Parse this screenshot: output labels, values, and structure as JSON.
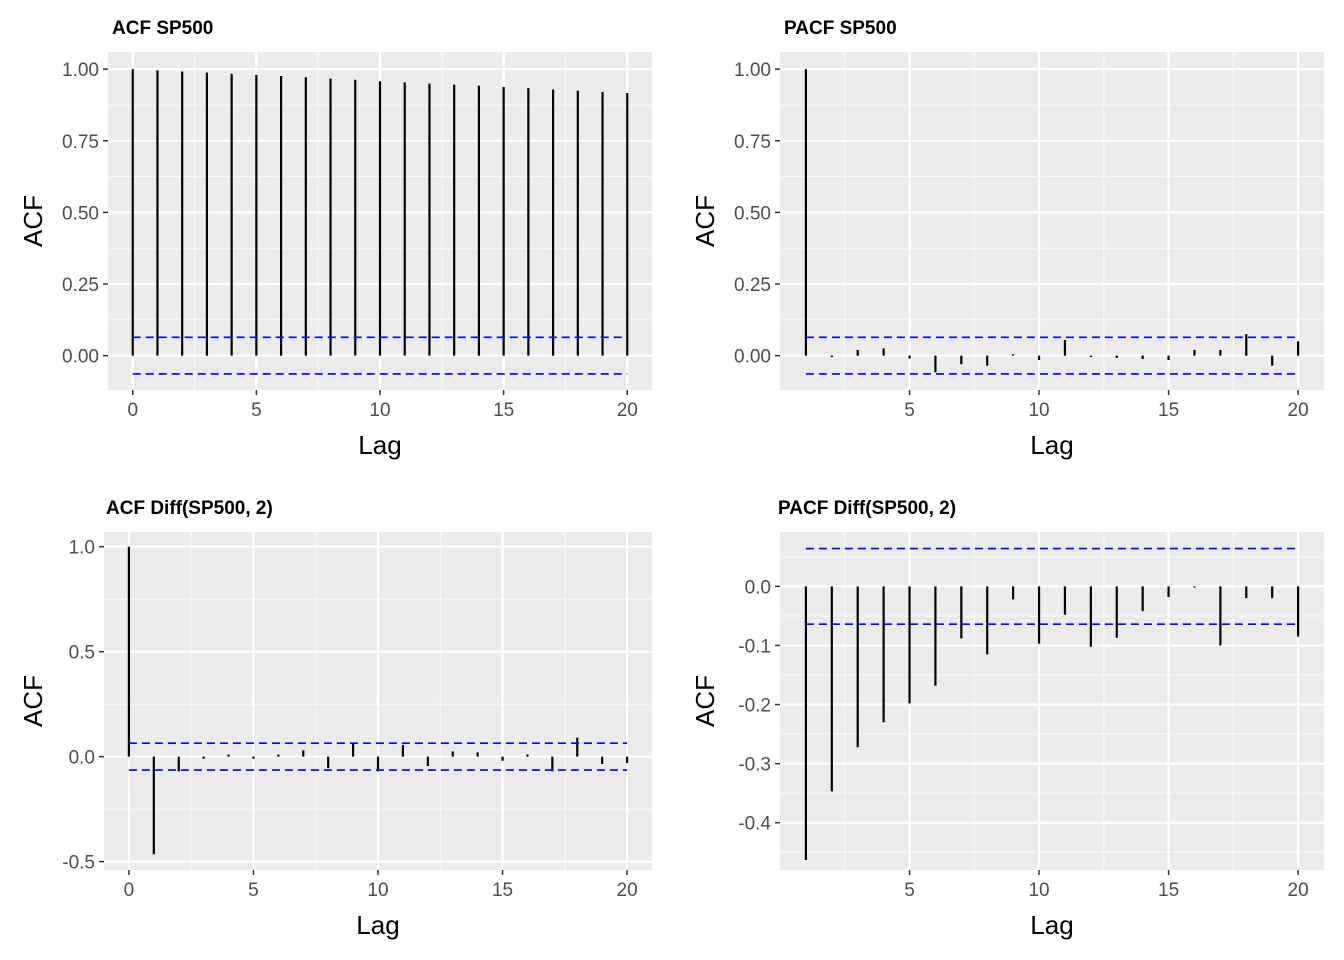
{
  "chart_data": [
    {
      "id": "acf-sp500",
      "type": "bar",
      "title": "ACF SP500",
      "xlabel": "Lag",
      "ylabel": "ACF",
      "x": [
        0,
        1,
        2,
        3,
        4,
        5,
        6,
        7,
        8,
        9,
        10,
        11,
        12,
        13,
        14,
        15,
        16,
        17,
        18,
        19,
        20
      ],
      "values": [
        1.0,
        0.996,
        0.992,
        0.988,
        0.984,
        0.98,
        0.976,
        0.972,
        0.967,
        0.963,
        0.958,
        0.954,
        0.95,
        0.946,
        0.942,
        0.938,
        0.934,
        0.929,
        0.925,
        0.921,
        0.917
      ],
      "ci": 0.064,
      "xlim": [
        -1,
        21
      ],
      "ylim": [
        -0.12,
        1.06
      ],
      "xticks": [
        0,
        5,
        10,
        15,
        20
      ],
      "xtick_labels": [
        "0",
        "5",
        "10",
        "15",
        "20"
      ],
      "yticks": [
        0,
        0.25,
        0.5,
        0.75,
        1.0
      ],
      "ytick_labels": [
        "0.00",
        "0.25",
        "0.50",
        "0.75",
        "1.00"
      ]
    },
    {
      "id": "pacf-sp500",
      "type": "bar",
      "title": "PACF SP500",
      "xlabel": "Lag",
      "ylabel": "ACF",
      "x": [
        1,
        2,
        3,
        4,
        5,
        6,
        7,
        8,
        9,
        10,
        11,
        12,
        13,
        14,
        15,
        16,
        17,
        18,
        19,
        20
      ],
      "values": [
        1.0,
        -0.005,
        0.02,
        0.025,
        -0.01,
        -0.058,
        -0.03,
        -0.035,
        0.005,
        -0.015,
        0.055,
        -0.005,
        -0.008,
        -0.012,
        -0.015,
        0.02,
        0.02,
        0.075,
        -0.035,
        0.05
      ],
      "ci": 0.064,
      "xlim": [
        0,
        21
      ],
      "ylim": [
        -0.12,
        1.06
      ],
      "xticks": [
        5,
        10,
        15,
        20
      ],
      "xtick_labels": [
        "5",
        "10",
        "15",
        "20"
      ],
      "yticks": [
        0,
        0.25,
        0.5,
        0.75,
        1.0
      ],
      "ytick_labels": [
        "0.00",
        "0.25",
        "0.50",
        "0.75",
        "1.00"
      ]
    },
    {
      "id": "acf-diff",
      "type": "bar",
      "title": "ACF Diff(SP500, 2)",
      "xlabel": "Lag",
      "ylabel": "ACF",
      "x": [
        0,
        1,
        2,
        3,
        4,
        5,
        6,
        7,
        8,
        9,
        10,
        11,
        12,
        13,
        14,
        15,
        16,
        17,
        18,
        19,
        20
      ],
      "values": [
        1.0,
        -0.465,
        -0.07,
        -0.01,
        0.01,
        -0.01,
        0.01,
        0.03,
        -0.055,
        0.06,
        -0.07,
        0.055,
        -0.045,
        0.025,
        0.02,
        -0.02,
        0.01,
        -0.07,
        0.09,
        -0.035,
        -0.03
      ],
      "ci": 0.064,
      "xlim": [
        -1,
        21
      ],
      "ylim": [
        -0.54,
        1.07
      ],
      "xticks": [
        0,
        5,
        10,
        15,
        20
      ],
      "xtick_labels": [
        "0",
        "5",
        "10",
        "15",
        "20"
      ],
      "yticks": [
        -0.5,
        0,
        0.5,
        1.0
      ],
      "ytick_labels": [
        "-0.5",
        "0.0",
        "0.5",
        "1.0"
      ]
    },
    {
      "id": "pacf-diff",
      "type": "bar",
      "title": "PACF Diff(SP500, 2)",
      "xlabel": "Lag",
      "ylabel": "ACF",
      "x": [
        1,
        2,
        3,
        4,
        5,
        6,
        7,
        8,
        9,
        10,
        11,
        12,
        13,
        14,
        15,
        16,
        17,
        18,
        19,
        20
      ],
      "values": [
        -0.463,
        -0.347,
        -0.272,
        -0.23,
        -0.198,
        -0.168,
        -0.088,
        -0.115,
        -0.022,
        -0.097,
        -0.048,
        -0.102,
        -0.087,
        -0.042,
        -0.018,
        -0.002,
        -0.1,
        -0.02,
        -0.02,
        -0.085
      ],
      "ci": 0.064,
      "xlim": [
        0,
        21
      ],
      "ylim": [
        -0.48,
        0.092
      ],
      "xticks": [
        5,
        10,
        15,
        20
      ],
      "xtick_labels": [
        "5",
        "10",
        "15",
        "20"
      ],
      "yticks": [
        -0.4,
        -0.3,
        -0.2,
        -0.1,
        0.0
      ],
      "ytick_labels": [
        "-0.4",
        "-0.3",
        "-0.2",
        "-0.1",
        "0.0"
      ]
    }
  ]
}
